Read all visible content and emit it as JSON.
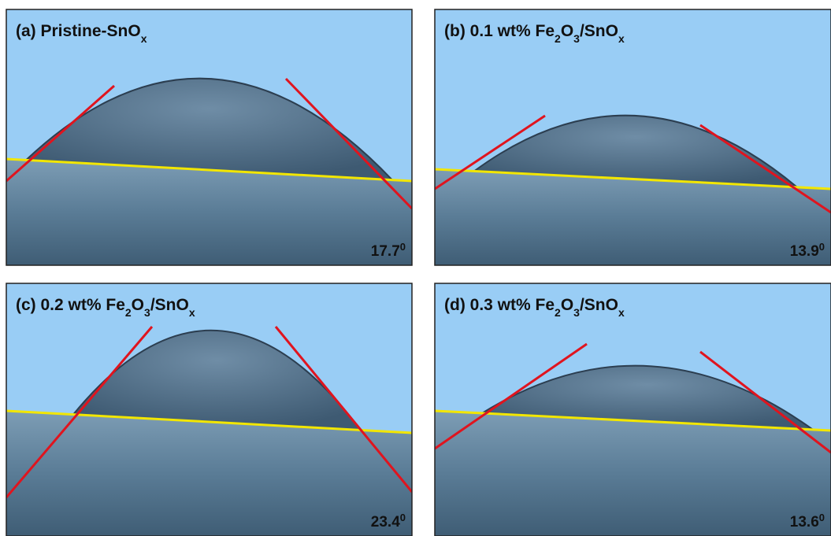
{
  "panels": [
    {
      "label_parts": [
        "(a) Pristine-SnO",
        "x"
      ],
      "angle": 17.7,
      "degree_mark": "0"
    },
    {
      "label_parts": [
        "(b) 0.1 wt%  Fe",
        "2",
        "O",
        "3",
        "/SnO",
        "x"
      ],
      "angle": 13.9,
      "degree_mark": "0"
    },
    {
      "label_parts": [
        "(c)  0.2 wt%  Fe",
        "2",
        "O",
        "3",
        "/SnO",
        "x"
      ],
      "angle": 23.4,
      "degree_mark": "0"
    },
    {
      "label_parts": [
        "(d)  0.3 wt%  Fe",
        "2",
        "O",
        "3",
        "/SnO",
        "x"
      ],
      "angle": 13.6,
      "degree_mark": "0"
    }
  ]
}
